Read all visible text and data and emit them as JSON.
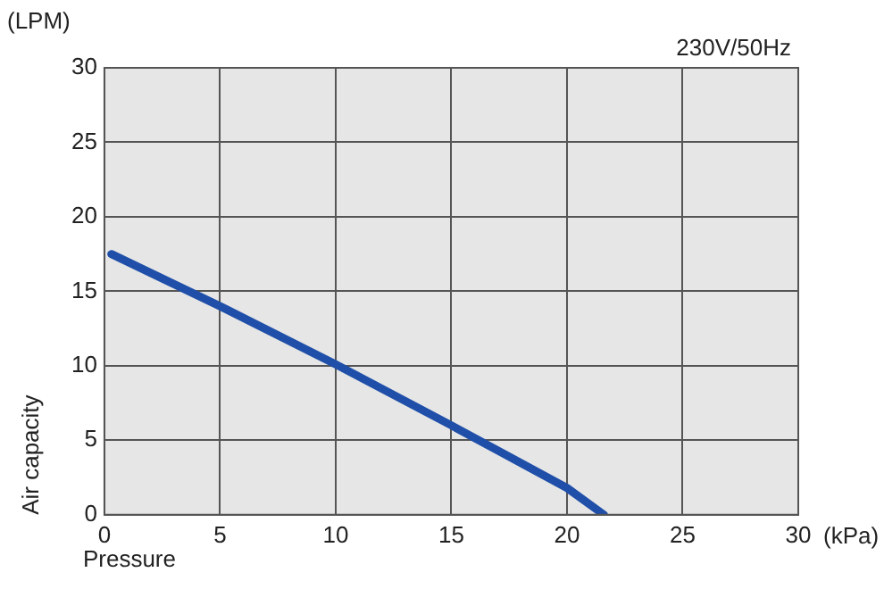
{
  "chart_data": {
    "type": "line",
    "xlabel": "Pressure",
    "ylabel": "Air capacity",
    "annotations": [
      "(LPM)",
      "230V/50Hz",
      "(kPa)"
    ],
    "x": [
      0.3,
      5,
      10,
      15,
      20,
      21.6
    ],
    "series": [
      {
        "color": "#1f4fa8",
        "values": [
          17.5,
          14,
          10.1,
          6,
          1.8,
          0
        ]
      }
    ],
    "xlim": [
      0,
      30
    ],
    "xticks": [
      0,
      5,
      10,
      15,
      20,
      25,
      30
    ],
    "ylim": [
      0,
      30
    ],
    "yticks": [
      0,
      5,
      10,
      15,
      20,
      25,
      30
    ],
    "grid": true,
    "legend": false,
    "marker": "none",
    "line_style": "solid"
  }
}
